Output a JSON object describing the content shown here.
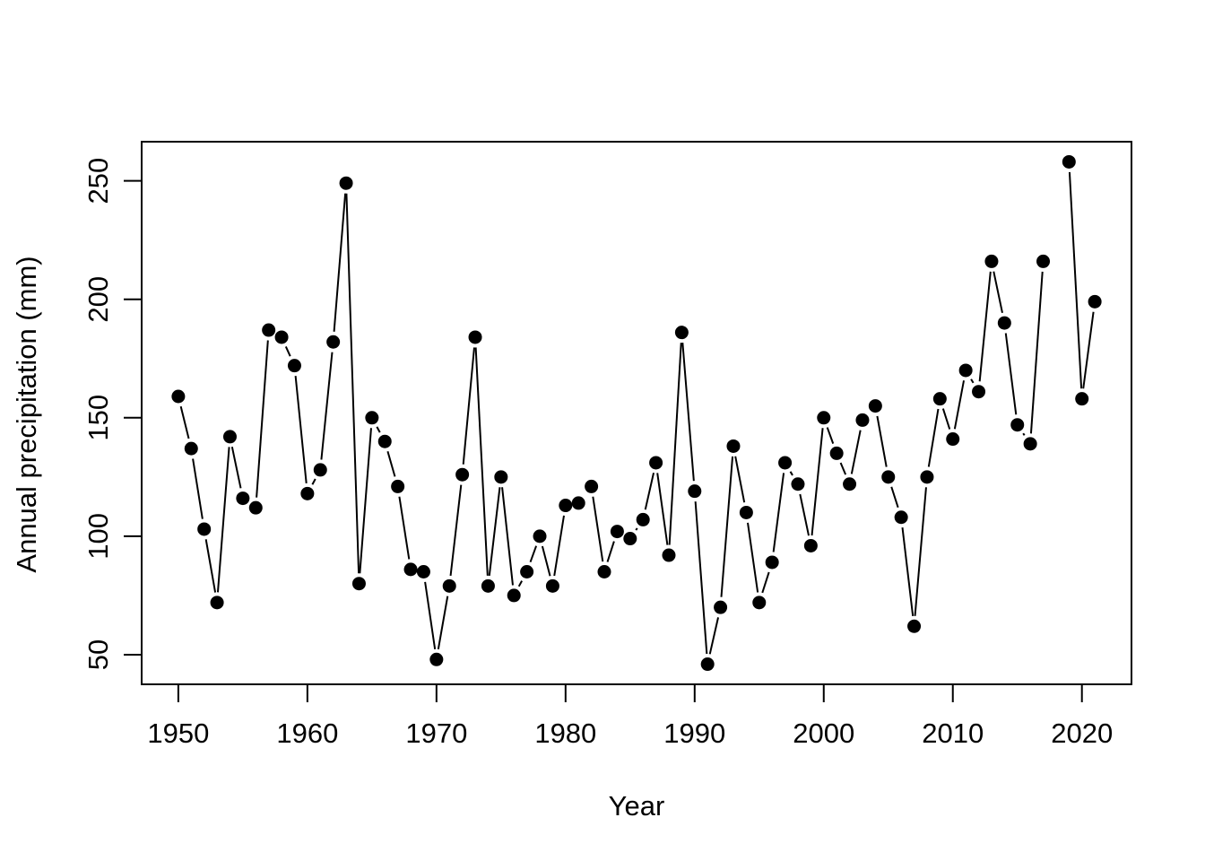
{
  "page": {
    "background_color": "#ffffff",
    "foreground_color": "#000000"
  },
  "chart_data": {
    "type": "line",
    "subtype": "points-and-lines",
    "marker": "filled-circle",
    "series_color": "#000000",
    "title": "",
    "xlabel": "Year",
    "ylabel": "Annual precipitation (mm)",
    "x": [
      1950,
      1951,
      1952,
      1953,
      1954,
      1955,
      1956,
      1957,
      1958,
      1959,
      1960,
      1961,
      1962,
      1963,
      1964,
      1965,
      1966,
      1967,
      1968,
      1969,
      1970,
      1971,
      1972,
      1973,
      1974,
      1975,
      1976,
      1977,
      1978,
      1979,
      1980,
      1981,
      1982,
      1983,
      1984,
      1985,
      1986,
      1987,
      1988,
      1989,
      1990,
      1991,
      1992,
      1993,
      1994,
      1995,
      1996,
      1997,
      1998,
      1999,
      2000,
      2001,
      2002,
      2003,
      2004,
      2005,
      2006,
      2007,
      2008,
      2009,
      2010,
      2011,
      2012,
      2013,
      2014,
      2015,
      2016,
      2017,
      2018,
      2019,
      2020,
      2021
    ],
    "y": [
      159,
      137,
      103,
      72,
      142,
      116,
      112,
      187,
      184,
      172,
      118,
      128,
      182,
      249,
      80,
      150,
      140,
      121,
      86,
      85,
      48,
      79,
      126,
      184,
      79,
      125,
      75,
      85,
      100,
      79,
      113,
      114,
      121,
      85,
      102,
      99,
      107,
      131,
      92,
      186,
      119,
      46,
      70,
      138,
      110,
      72,
      89,
      131,
      122,
      96,
      150,
      135,
      122,
      149,
      155,
      125,
      108,
      62,
      125,
      158,
      141,
      170,
      161,
      216,
      190,
      147,
      139,
      216,
      null,
      258,
      158,
      199
    ],
    "x_ticks": [
      1950,
      1960,
      1970,
      1980,
      1990,
      2000,
      2010,
      2020
    ],
    "y_ticks": [
      50,
      100,
      150,
      200,
      250
    ],
    "x_range": [
      1947.16,
      2023.84
    ],
    "y_range": [
      37.5,
      266.5
    ],
    "grid": "off",
    "legend": "none"
  }
}
